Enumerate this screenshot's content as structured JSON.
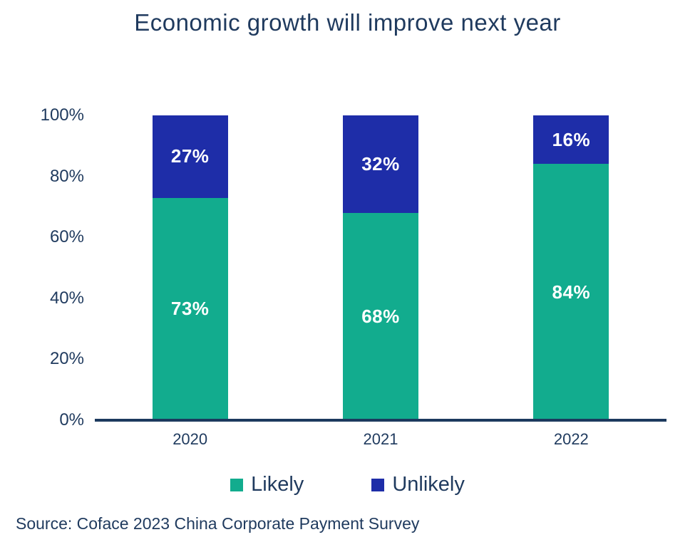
{
  "title": "Economic growth will improve next year",
  "source": "Source: Coface 2023 China Corporate Payment Survey",
  "colors": {
    "likely": "#12AC8E",
    "unlikely": "#1E2DA8",
    "text_navy": "#1F3A5E",
    "axis_line": "#1C3A5E",
    "value_label": "#FFFFFF"
  },
  "legend": {
    "items": [
      {
        "label": "Likely",
        "color_key": "likely"
      },
      {
        "label": "Unlikely",
        "color_key": "unlikely"
      }
    ]
  },
  "chart_data": {
    "type": "bar",
    "stacked": true,
    "title": "Economic growth will improve next year",
    "categories": [
      "2020",
      "2021",
      "2022"
    ],
    "series": [
      {
        "name": "Likely",
        "color_key": "likely",
        "values": [
          73,
          68,
          84
        ],
        "labels": [
          "73%",
          "68%",
          "84%"
        ]
      },
      {
        "name": "Unlikely",
        "color_key": "unlikely",
        "values": [
          27,
          32,
          16
        ],
        "labels": [
          "27%",
          "32%",
          "16%"
        ]
      }
    ],
    "yticks": [
      "0%",
      "20%",
      "40%",
      "60%",
      "80%",
      "100%"
    ],
    "ylim": [
      0,
      100
    ],
    "xlabel": "",
    "ylabel": "",
    "grid": false,
    "legend_position": "bottom",
    "value_suffix": "%"
  }
}
